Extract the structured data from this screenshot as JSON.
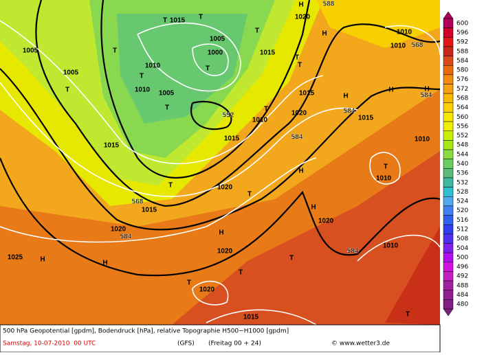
{
  "legend": {
    "labels": [
      600,
      596,
      592,
      588,
      584,
      580,
      576,
      572,
      568,
      564,
      560,
      556,
      552,
      548,
      544,
      540,
      536,
      532,
      528,
      524,
      520,
      516,
      512,
      508,
      504,
      500,
      496,
      492,
      488,
      484,
      480
    ],
    "colors": [
      "#b0005a",
      "#d0002a",
      "#e01818",
      "#c82818",
      "#d84a18",
      "#e86a10",
      "#f08a10",
      "#f5a010",
      "#f8b800",
      "#fad000",
      "#f8e800",
      "#f0f000",
      "#c8f000",
      "#a8e818",
      "#88dc40",
      "#68cc60",
      "#58bc78",
      "#40b8a0",
      "#30c0d0",
      "#50a8f0",
      "#4080f0",
      "#3060f0",
      "#3040f0",
      "#5030f0",
      "#8020f0",
      "#b010f0",
      "#d010e0",
      "#c020c0",
      "#a020a0",
      "#902090",
      "#802080"
    ]
  },
  "map": {
    "labels": [
      "T",
      "1015",
      "T",
      "T",
      "1005",
      "1000",
      "T",
      "1010",
      "T",
      "1010",
      "1005",
      "T",
      "552",
      "1015",
      "T",
      "568",
      "1015",
      "1020",
      "584",
      "H",
      "H",
      "1025",
      "T",
      "1020",
      "H",
      "1020",
      "T",
      "T",
      "T",
      "1020",
      "1015",
      "H",
      "1020",
      "588",
      "H",
      "T",
      "1015",
      "T",
      "1015",
      "1020",
      "584",
      "H",
      "H",
      "1020",
      "584",
      "H",
      "H",
      "584",
      "1015",
      "T",
      "1010",
      "H",
      "584",
      "1010",
      "568",
      "1010",
      "1010",
      "T",
      "1010",
      "1015",
      "T",
      "1005",
      "1005",
      "T",
      "T",
      "1010"
    ]
  },
  "footer": {
    "line1": "500 hPa Geopotential [gpdm], Bodendruck [hPa], relative Topographie H500−H1000 [gpdm]",
    "date": "Samstag, 10-07-2010  00 UTC",
    "model": "(GFS)",
    "run": "(Freitag 00 + 24)",
    "credit": "© www.wetter3.de"
  }
}
